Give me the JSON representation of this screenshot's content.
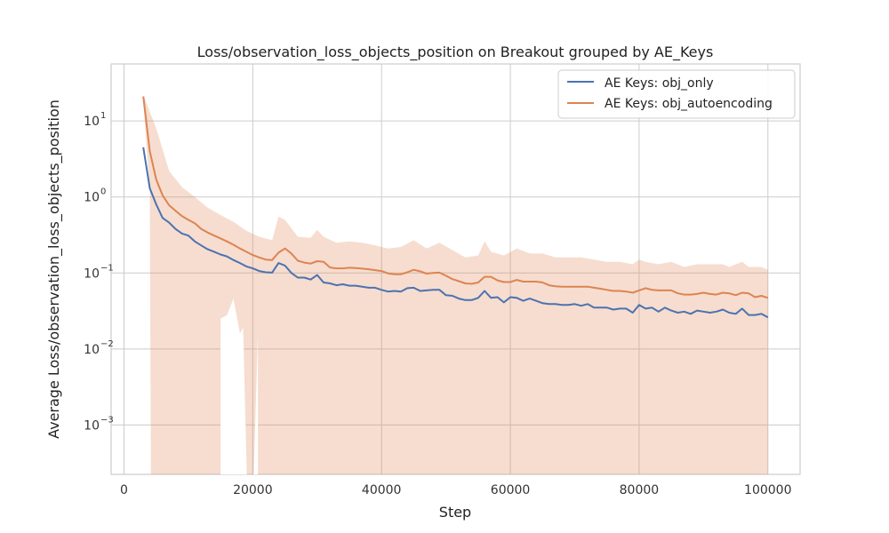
{
  "chart_data": {
    "type": "line",
    "title": "Loss/observation_loss_objects_position on Breakout grouped by AE_Keys",
    "xlabel": "Step",
    "ylabel": "Average Loss/observation_loss_objects_position",
    "yscale": "log",
    "xlim": [
      -2000,
      105000
    ],
    "ylim_log10": [
      -3.65,
      1.75
    ],
    "xticks": [
      0,
      20000,
      40000,
      60000,
      80000,
      100000
    ],
    "xtick_labels": [
      "0",
      "20000",
      "40000",
      "60000",
      "80000",
      "100000"
    ],
    "yticks_log10": [
      -3,
      -2,
      -1,
      0,
      1
    ],
    "ytick_bases": [
      "10",
      "10",
      "10",
      "10",
      "10"
    ],
    "ytick_exponents": [
      "−3",
      "−2",
      "−1",
      "0",
      "1"
    ],
    "grid": true,
    "legend_position": "top-right",
    "series": [
      {
        "name": "AE Keys: obj_only",
        "color": "#4c72b0",
        "points": [
          [
            3000,
            4.5
          ],
          [
            4000,
            1.3
          ],
          [
            5000,
            0.8
          ],
          [
            6000,
            0.53
          ],
          [
            7000,
            0.46
          ],
          [
            8000,
            0.38
          ],
          [
            9000,
            0.33
          ],
          [
            10000,
            0.31
          ],
          [
            11000,
            0.26
          ],
          [
            12000,
            0.23
          ],
          [
            13000,
            0.205
          ],
          [
            14000,
            0.19
          ],
          [
            15000,
            0.175
          ],
          [
            16000,
            0.165
          ],
          [
            17000,
            0.148
          ],
          [
            18000,
            0.135
          ],
          [
            19000,
            0.122
          ],
          [
            20000,
            0.115
          ],
          [
            21000,
            0.106
          ],
          [
            22000,
            0.102
          ],
          [
            23000,
            0.101
          ],
          [
            24000,
            0.135
          ],
          [
            25000,
            0.125
          ],
          [
            26000,
            0.1
          ],
          [
            27000,
            0.087
          ],
          [
            28000,
            0.087
          ],
          [
            29000,
            0.082
          ],
          [
            30000,
            0.094
          ],
          [
            31000,
            0.075
          ],
          [
            32000,
            0.073
          ],
          [
            33000,
            0.069
          ],
          [
            34000,
            0.071
          ],
          [
            35000,
            0.068
          ],
          [
            36000,
            0.068
          ],
          [
            37000,
            0.066
          ],
          [
            38000,
            0.064
          ],
          [
            39000,
            0.064
          ],
          [
            40000,
            0.06
          ],
          [
            41000,
            0.057
          ],
          [
            42000,
            0.058
          ],
          [
            43000,
            0.057
          ],
          [
            44000,
            0.063
          ],
          [
            45000,
            0.064
          ],
          [
            46000,
            0.058
          ],
          [
            47000,
            0.059
          ],
          [
            48000,
            0.06
          ],
          [
            49000,
            0.06
          ],
          [
            50000,
            0.051
          ],
          [
            51000,
            0.05
          ],
          [
            52000,
            0.046
          ],
          [
            53000,
            0.044
          ],
          [
            54000,
            0.044
          ],
          [
            55000,
            0.047
          ],
          [
            56000,
            0.058
          ],
          [
            57000,
            0.047
          ],
          [
            58000,
            0.048
          ],
          [
            59000,
            0.041
          ],
          [
            60000,
            0.048
          ],
          [
            61000,
            0.047
          ],
          [
            62000,
            0.043
          ],
          [
            63000,
            0.046
          ],
          [
            64000,
            0.043
          ],
          [
            65000,
            0.04
          ],
          [
            66000,
            0.039
          ],
          [
            67000,
            0.039
          ],
          [
            68000,
            0.038
          ],
          [
            69000,
            0.038
          ],
          [
            70000,
            0.039
          ],
          [
            71000,
            0.037
          ],
          [
            72000,
            0.039
          ],
          [
            73000,
            0.035
          ],
          [
            74000,
            0.035
          ],
          [
            75000,
            0.035
          ],
          [
            76000,
            0.033
          ],
          [
            77000,
            0.034
          ],
          [
            78000,
            0.034
          ],
          [
            79000,
            0.03
          ],
          [
            80000,
            0.038
          ],
          [
            81000,
            0.034
          ],
          [
            82000,
            0.035
          ],
          [
            83000,
            0.031
          ],
          [
            84000,
            0.035
          ],
          [
            85000,
            0.032
          ],
          [
            86000,
            0.03
          ],
          [
            87000,
            0.031
          ],
          [
            88000,
            0.029
          ],
          [
            89000,
            0.032
          ],
          [
            90000,
            0.031
          ],
          [
            91000,
            0.03
          ],
          [
            92000,
            0.031
          ],
          [
            93000,
            0.033
          ],
          [
            94000,
            0.03
          ],
          [
            95000,
            0.029
          ],
          [
            96000,
            0.034
          ],
          [
            97000,
            0.028
          ],
          [
            98000,
            0.028
          ],
          [
            99000,
            0.029
          ],
          [
            100000,
            0.026
          ]
        ]
      },
      {
        "name": "AE Keys: obj_autoencoding",
        "color": "#dd8452",
        "points": [
          [
            3000,
            21.0
          ],
          [
            4000,
            4.0
          ],
          [
            5000,
            1.7
          ],
          [
            6000,
            1.05
          ],
          [
            7000,
            0.78
          ],
          [
            8000,
            0.66
          ],
          [
            9000,
            0.56
          ],
          [
            10000,
            0.5
          ],
          [
            11000,
            0.45
          ],
          [
            12000,
            0.38
          ],
          [
            13000,
            0.34
          ],
          [
            14000,
            0.31
          ],
          [
            15000,
            0.285
          ],
          [
            16000,
            0.26
          ],
          [
            17000,
            0.235
          ],
          [
            18000,
            0.21
          ],
          [
            19000,
            0.19
          ],
          [
            20000,
            0.172
          ],
          [
            21000,
            0.16
          ],
          [
            22000,
            0.15
          ],
          [
            23000,
            0.148
          ],
          [
            24000,
            0.185
          ],
          [
            25000,
            0.21
          ],
          [
            26000,
            0.18
          ],
          [
            27000,
            0.145
          ],
          [
            28000,
            0.137
          ],
          [
            29000,
            0.133
          ],
          [
            30000,
            0.143
          ],
          [
            31000,
            0.14
          ],
          [
            32000,
            0.118
          ],
          [
            33000,
            0.115
          ],
          [
            34000,
            0.115
          ],
          [
            35000,
            0.117
          ],
          [
            36000,
            0.116
          ],
          [
            37000,
            0.114
          ],
          [
            38000,
            0.112
          ],
          [
            39000,
            0.109
          ],
          [
            40000,
            0.106
          ],
          [
            41000,
            0.099
          ],
          [
            42000,
            0.096
          ],
          [
            43000,
            0.096
          ],
          [
            44000,
            0.102
          ],
          [
            45000,
            0.11
          ],
          [
            46000,
            0.105
          ],
          [
            47000,
            0.098
          ],
          [
            48000,
            0.1
          ],
          [
            49000,
            0.101
          ],
          [
            50000,
            0.092
          ],
          [
            51000,
            0.083
          ],
          [
            52000,
            0.078
          ],
          [
            53000,
            0.073
          ],
          [
            54000,
            0.072
          ],
          [
            55000,
            0.075
          ],
          [
            56000,
            0.089
          ],
          [
            57000,
            0.089
          ],
          [
            58000,
            0.08
          ],
          [
            59000,
            0.076
          ],
          [
            60000,
            0.076
          ],
          [
            61000,
            0.081
          ],
          [
            62000,
            0.077
          ],
          [
            63000,
            0.077
          ],
          [
            64000,
            0.077
          ],
          [
            65000,
            0.075
          ],
          [
            66000,
            0.069
          ],
          [
            67000,
            0.067
          ],
          [
            68000,
            0.066
          ],
          [
            69000,
            0.066
          ],
          [
            70000,
            0.066
          ],
          [
            71000,
            0.066
          ],
          [
            72000,
            0.066
          ],
          [
            73000,
            0.064
          ],
          [
            74000,
            0.062
          ],
          [
            75000,
            0.06
          ],
          [
            76000,
            0.058
          ],
          [
            77000,
            0.058
          ],
          [
            78000,
            0.057
          ],
          [
            79000,
            0.055
          ],
          [
            80000,
            0.059
          ],
          [
            81000,
            0.063
          ],
          [
            82000,
            0.06
          ],
          [
            83000,
            0.059
          ],
          [
            84000,
            0.059
          ],
          [
            85000,
            0.059
          ],
          [
            86000,
            0.054
          ],
          [
            87000,
            0.052
          ],
          [
            88000,
            0.052
          ],
          [
            89000,
            0.053
          ],
          [
            90000,
            0.055
          ],
          [
            91000,
            0.053
          ],
          [
            92000,
            0.052
          ],
          [
            93000,
            0.055
          ],
          [
            94000,
            0.054
          ],
          [
            95000,
            0.051
          ],
          [
            96000,
            0.055
          ],
          [
            97000,
            0.054
          ],
          [
            98000,
            0.048
          ],
          [
            99000,
            0.05
          ],
          [
            100000,
            0.047
          ]
        ]
      }
    ],
    "confidence_band": {
      "series": "AE Keys: obj_autoencoding",
      "color": "#dd8452",
      "opacity": 0.28,
      "upper": [
        [
          3000,
          22.0
        ],
        [
          5000,
          8.0
        ],
        [
          7000,
          2.2
        ],
        [
          9000,
          1.35
        ],
        [
          11000,
          1.0
        ],
        [
          13000,
          0.72
        ],
        [
          15000,
          0.58
        ],
        [
          17000,
          0.47
        ],
        [
          19000,
          0.36
        ],
        [
          21000,
          0.3
        ],
        [
          23000,
          0.27
        ],
        [
          24000,
          0.55
        ],
        [
          25000,
          0.5
        ],
        [
          27000,
          0.3
        ],
        [
          29000,
          0.29
        ],
        [
          30000,
          0.37
        ],
        [
          31000,
          0.3
        ],
        [
          33000,
          0.25
        ],
        [
          35000,
          0.26
        ],
        [
          37000,
          0.25
        ],
        [
          39000,
          0.23
        ],
        [
          41000,
          0.21
        ],
        [
          43000,
          0.22
        ],
        [
          45000,
          0.27
        ],
        [
          47000,
          0.21
        ],
        [
          49000,
          0.25
        ],
        [
          51000,
          0.2
        ],
        [
          53000,
          0.16
        ],
        [
          55000,
          0.17
        ],
        [
          56000,
          0.26
        ],
        [
          57000,
          0.19
        ],
        [
          59000,
          0.17
        ],
        [
          61000,
          0.21
        ],
        [
          63000,
          0.18
        ],
        [
          65000,
          0.18
        ],
        [
          67000,
          0.16
        ],
        [
          69000,
          0.16
        ],
        [
          71000,
          0.16
        ],
        [
          73000,
          0.15
        ],
        [
          75000,
          0.14
        ],
        [
          77000,
          0.14
        ],
        [
          79000,
          0.13
        ],
        [
          80000,
          0.15
        ],
        [
          81000,
          0.14
        ],
        [
          83000,
          0.13
        ],
        [
          85000,
          0.14
        ],
        [
          87000,
          0.12
        ],
        [
          89000,
          0.13
        ],
        [
          91000,
          0.13
        ],
        [
          93000,
          0.13
        ],
        [
          94000,
          0.12
        ],
        [
          95000,
          0.13
        ],
        [
          96000,
          0.14
        ],
        [
          97000,
          0.12
        ],
        [
          99000,
          0.12
        ],
        [
          100000,
          0.11
        ]
      ],
      "lower": [
        [
          3000,
          18.0
        ],
        [
          4000,
          1.2
        ],
        [
          4200,
          1e-05
        ],
        [
          100000,
          1e-05
        ]
      ],
      "gaps": [
        [
          15000,
          19000,
          0.025,
          0.046
        ],
        [
          19000,
          20500,
          0.016,
          0.03
        ]
      ],
      "gap_floor_x": [
        15000,
        16000,
        17000,
        18000,
        18500,
        19200,
        20000,
        20800
      ],
      "gap_floor_y": [
        0.025,
        0.028,
        0.046,
        0.016,
        0.019,
        1e-05,
        1e-05,
        0.016
      ]
    }
  }
}
